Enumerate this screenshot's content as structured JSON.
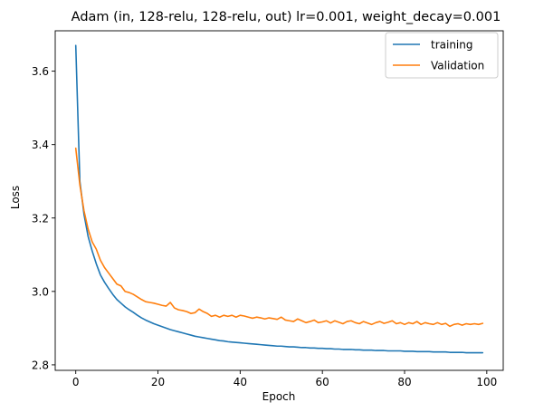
{
  "chart_data": {
    "type": "line",
    "title": "Adam (in, 128-relu, 128-relu, out) lr=0.001, weight_decay=0.001",
    "xlabel": "Epoch",
    "ylabel": "Loss",
    "xlim": [
      -5,
      104
    ],
    "ylim": [
      2.785,
      3.71
    ],
    "xticks": [
      0,
      20,
      40,
      60,
      80,
      100
    ],
    "yticks": [
      2.8,
      3.0,
      3.2,
      3.4,
      3.6
    ],
    "xtick_labels": [
      "0",
      "20",
      "40",
      "60",
      "80",
      "100"
    ],
    "ytick_labels": [
      "2.8",
      "3.0",
      "3.2",
      "3.4",
      "3.6"
    ],
    "grid": false,
    "legend_position": "top-right",
    "x": [
      0,
      1,
      2,
      3,
      4,
      5,
      6,
      7,
      8,
      9,
      10,
      11,
      12,
      13,
      14,
      15,
      16,
      17,
      18,
      19,
      20,
      21,
      22,
      23,
      24,
      25,
      26,
      27,
      28,
      29,
      30,
      31,
      32,
      33,
      34,
      35,
      36,
      37,
      38,
      39,
      40,
      41,
      42,
      43,
      44,
      45,
      46,
      47,
      48,
      49,
      50,
      51,
      52,
      53,
      54,
      55,
      56,
      57,
      58,
      59,
      60,
      61,
      62,
      63,
      64,
      65,
      66,
      67,
      68,
      69,
      70,
      71,
      72,
      73,
      74,
      75,
      76,
      77,
      78,
      79,
      80,
      81,
      82,
      83,
      84,
      85,
      86,
      87,
      88,
      89,
      90,
      91,
      92,
      93,
      94,
      95,
      96,
      97,
      98,
      99
    ],
    "series": [
      {
        "name": "training",
        "color": "#1f77b4",
        "values": [
          3.67,
          3.3,
          3.21,
          3.15,
          3.11,
          3.075,
          3.045,
          3.025,
          3.008,
          2.992,
          2.978,
          2.968,
          2.958,
          2.95,
          2.943,
          2.935,
          2.928,
          2.922,
          2.917,
          2.912,
          2.908,
          2.904,
          2.9,
          2.896,
          2.893,
          2.89,
          2.887,
          2.884,
          2.881,
          2.878,
          2.876,
          2.874,
          2.872,
          2.87,
          2.868,
          2.866,
          2.865,
          2.863,
          2.862,
          2.861,
          2.86,
          2.859,
          2.858,
          2.857,
          2.856,
          2.855,
          2.854,
          2.853,
          2.852,
          2.851,
          2.851,
          2.85,
          2.849,
          2.849,
          2.848,
          2.847,
          2.847,
          2.846,
          2.846,
          2.845,
          2.845,
          2.844,
          2.844,
          2.843,
          2.843,
          2.842,
          2.842,
          2.842,
          2.841,
          2.841,
          2.84,
          2.84,
          2.84,
          2.839,
          2.839,
          2.839,
          2.838,
          2.838,
          2.838,
          2.838,
          2.837,
          2.837,
          2.837,
          2.836,
          2.836,
          2.836,
          2.836,
          2.835,
          2.835,
          2.835,
          2.835,
          2.834,
          2.834,
          2.834,
          2.834,
          2.833,
          2.833,
          2.833,
          2.833,
          2.833
        ]
      },
      {
        "name": "Validation",
        "color": "#ff7f0e",
        "values": [
          3.39,
          3.29,
          3.22,
          3.17,
          3.135,
          3.115,
          3.085,
          3.065,
          3.05,
          3.035,
          3.02,
          3.015,
          3.0,
          2.997,
          2.992,
          2.985,
          2.978,
          2.972,
          2.97,
          2.968,
          2.965,
          2.962,
          2.96,
          2.97,
          2.955,
          2.95,
          2.948,
          2.945,
          2.94,
          2.942,
          2.952,
          2.945,
          2.94,
          2.932,
          2.935,
          2.93,
          2.935,
          2.932,
          2.935,
          2.93,
          2.935,
          2.933,
          2.93,
          2.927,
          2.93,
          2.928,
          2.925,
          2.928,
          2.926,
          2.924,
          2.93,
          2.922,
          2.92,
          2.918,
          2.925,
          2.92,
          2.915,
          2.918,
          2.922,
          2.915,
          2.917,
          2.92,
          2.914,
          2.92,
          2.916,
          2.912,
          2.918,
          2.92,
          2.915,
          2.912,
          2.918,
          2.914,
          2.91,
          2.915,
          2.918,
          2.913,
          2.916,
          2.92,
          2.912,
          2.915,
          2.91,
          2.915,
          2.912,
          2.918,
          2.91,
          2.915,
          2.912,
          2.91,
          2.915,
          2.91,
          2.913,
          2.905,
          2.91,
          2.912,
          2.908,
          2.912,
          2.91,
          2.912,
          2.91,
          2.913
        ]
      }
    ]
  }
}
